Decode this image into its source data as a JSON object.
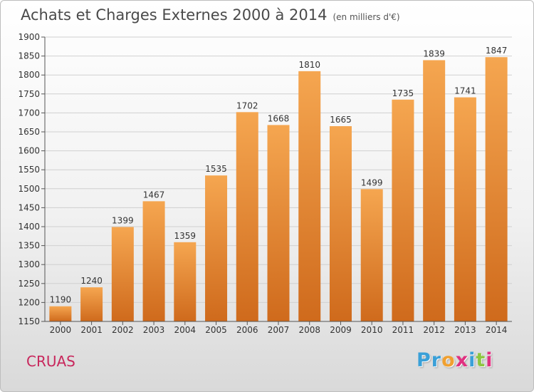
{
  "header": {
    "title": "Achats et Charges Externes 2000 à 2014",
    "unit": "(en milliers d'€)"
  },
  "footer": {
    "city": "CRUAS",
    "logo_text": "Proxiti",
    "logo_letters": [
      {
        "char": "P",
        "color": "#3aa0d8"
      },
      {
        "char": "r",
        "color": "#3aa0d8"
      },
      {
        "char": "o",
        "color": "#f0a030"
      },
      {
        "char": "x",
        "color": "#e03080"
      },
      {
        "char": "i",
        "color": "#3aa0d8"
      },
      {
        "char": "t",
        "color": "#8cc63f"
      },
      {
        "char": "i",
        "color": "#e03080"
      }
    ]
  },
  "chart_data": {
    "type": "bar",
    "title": "Achats et Charges Externes 2000 à 2014",
    "subtitle": "(en milliers d'€)",
    "categories": [
      "2000",
      "2001",
      "2002",
      "2003",
      "2004",
      "2005",
      "2006",
      "2007",
      "2008",
      "2009",
      "2010",
      "2011",
      "2012",
      "2013",
      "2014"
    ],
    "values": [
      1190,
      1240,
      1399,
      1467,
      1359,
      1535,
      1702,
      1668,
      1810,
      1665,
      1499,
      1735,
      1839,
      1741,
      1847
    ],
    "ylim": [
      1150,
      1900
    ],
    "yticks": [
      1150,
      1200,
      1250,
      1300,
      1350,
      1400,
      1450,
      1500,
      1550,
      1600,
      1650,
      1700,
      1750,
      1800,
      1850,
      1900
    ],
    "grid": true,
    "legend": "none",
    "bar_color_top": "#f5a650",
    "bar_color_bottom": "#cf6a1c",
    "grid_color": "#d0d0d0"
  }
}
